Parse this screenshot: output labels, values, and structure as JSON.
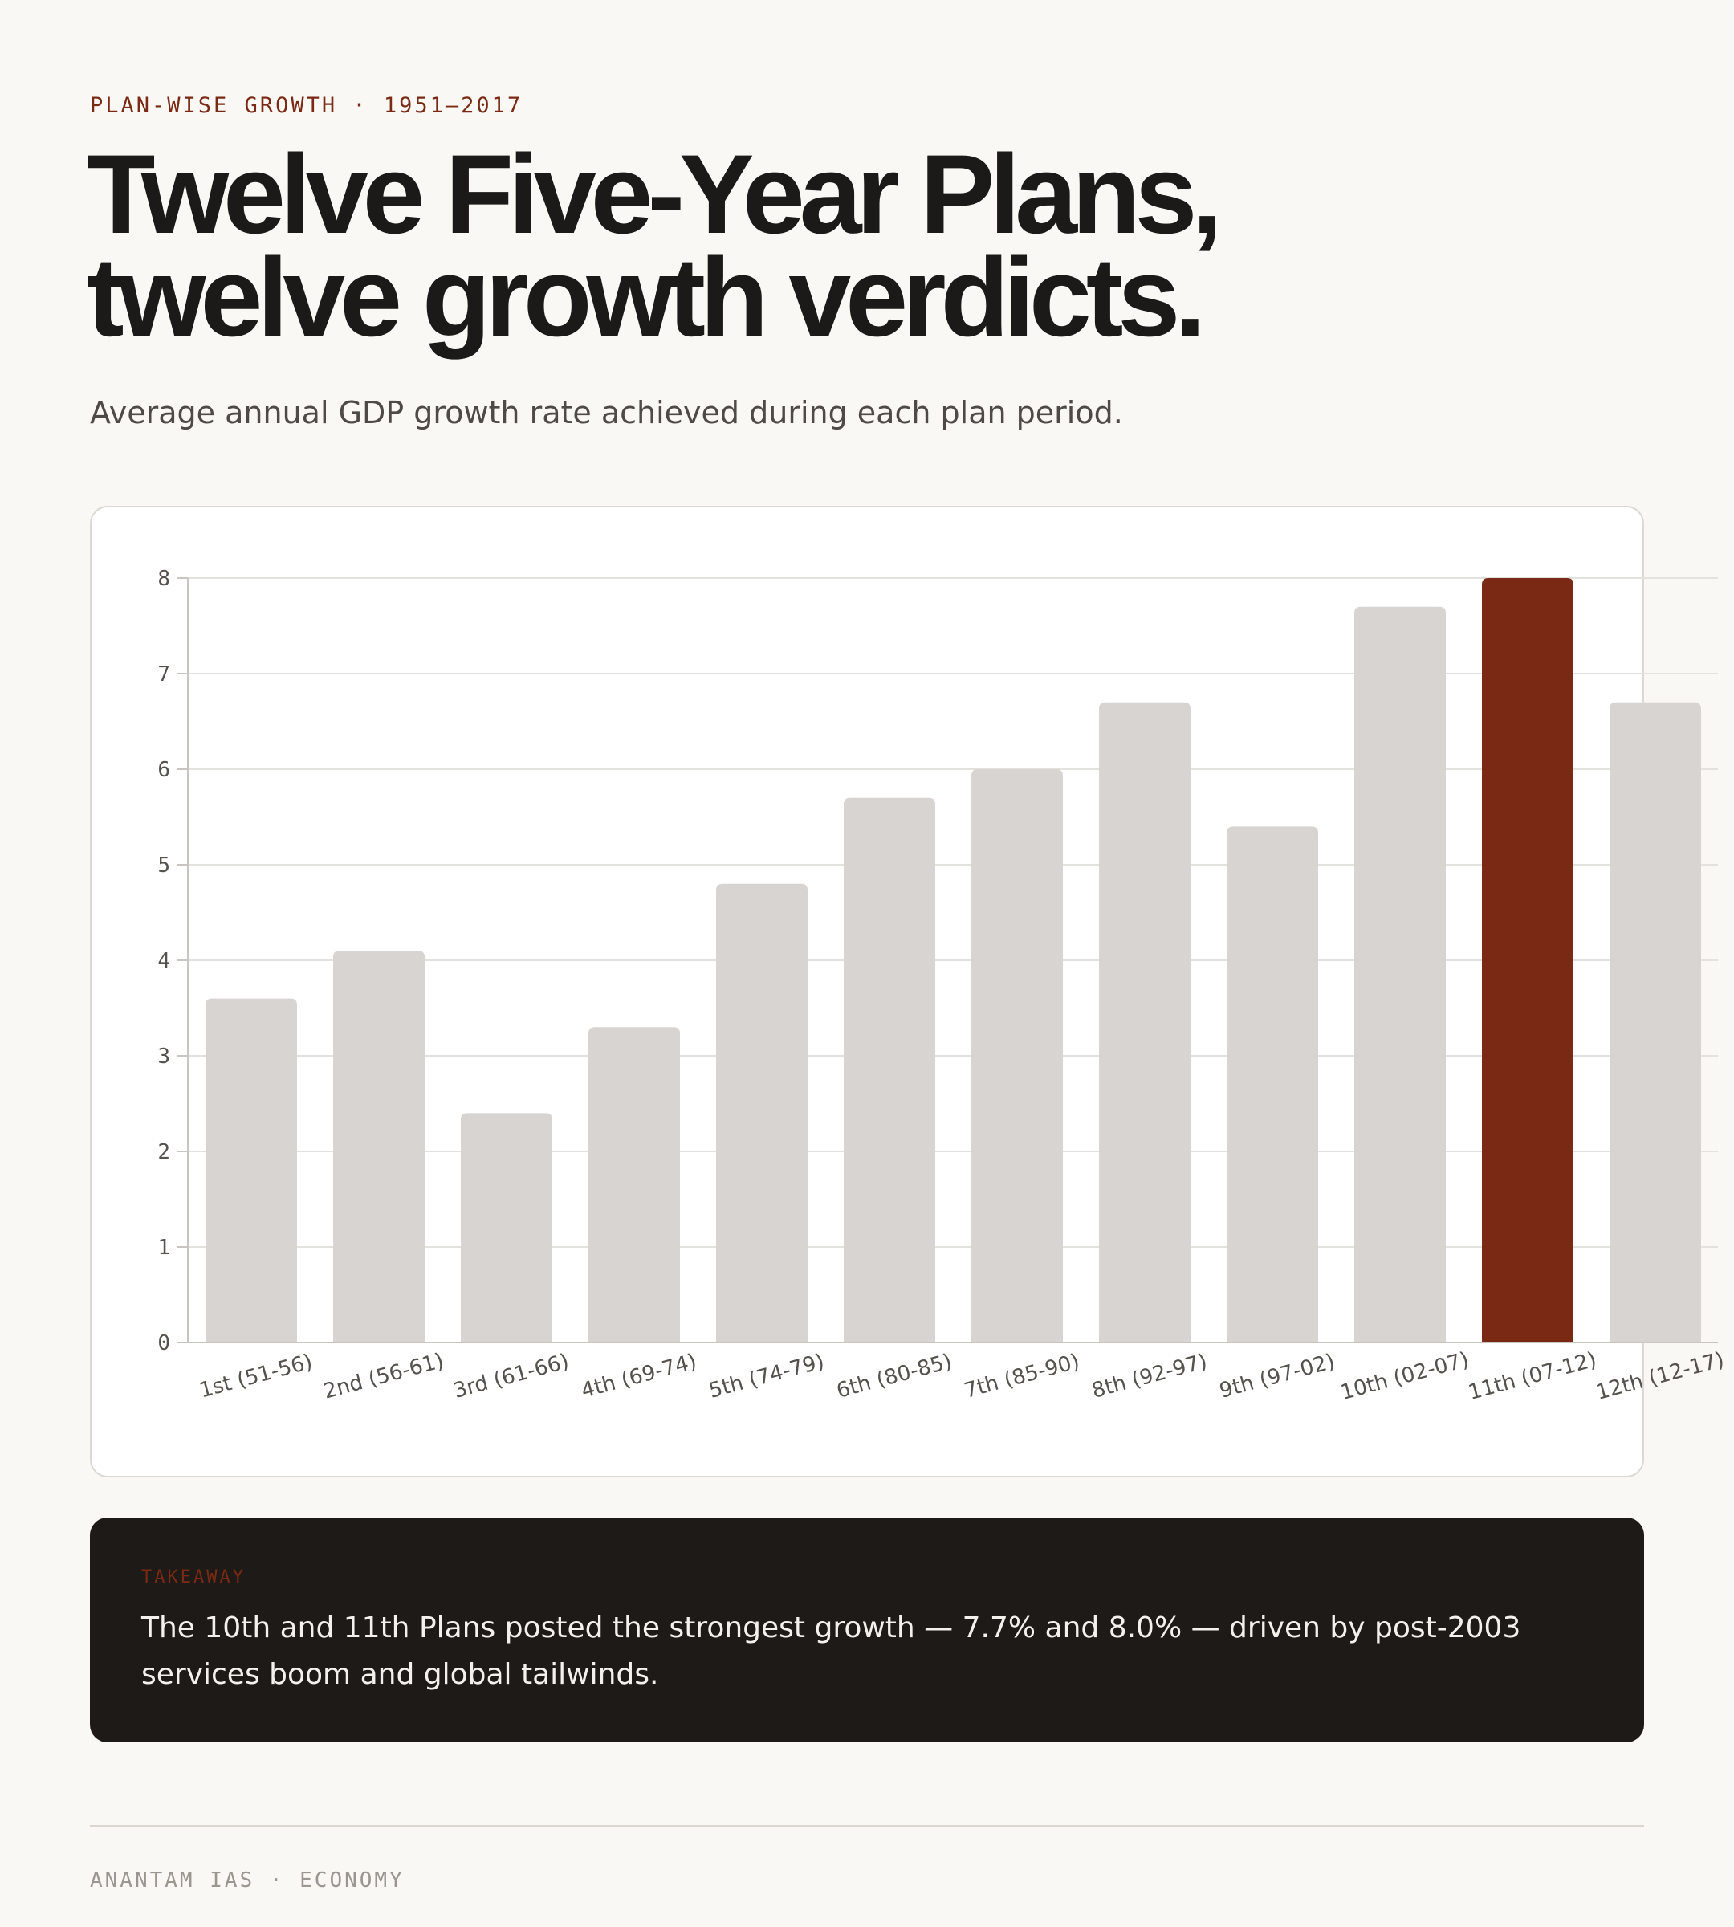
{
  "header": {
    "eyebrow": "PLAN-WISE GROWTH · 1951–2017",
    "title_line1": "Twelve Five-Year Plans,",
    "title_line2": "twelve growth verdicts.",
    "subtitle": "Average annual GDP growth rate achieved during each plan period."
  },
  "takeaway": {
    "label": "TAKEAWAY",
    "text": "The 10th and 11th Plans posted the strongest growth — 7.7% and 8.0% — driven by post-2003 services boom and global tailwinds."
  },
  "footer": {
    "text": "ANANTAM IAS · ECONOMY"
  },
  "colors": {
    "bar": "#d8d4d1",
    "highlight": "#7a2a14",
    "grid": "#e4e2df",
    "axis": "#c9c6c1"
  },
  "chart_data": {
    "type": "bar",
    "categories": [
      "1st (51-56)",
      "2nd (56-61)",
      "3rd (61-66)",
      "4th (69-74)",
      "5th (74-79)",
      "6th (80-85)",
      "7th (85-90)",
      "8th (92-97)",
      "9th (97-02)",
      "10th (02-07)",
      "11th (07-12)",
      "12th (12-17)"
    ],
    "values": [
      3.6,
      4.1,
      2.4,
      3.3,
      4.8,
      5.7,
      6.0,
      6.7,
      5.4,
      7.7,
      8.0,
      6.7
    ],
    "highlight_index": 10,
    "yticks": [
      0,
      1,
      2,
      3,
      4,
      5,
      6,
      7,
      8
    ],
    "ylim": [
      0,
      8
    ],
    "grid": true,
    "title": "",
    "xlabel": "",
    "ylabel": ""
  }
}
